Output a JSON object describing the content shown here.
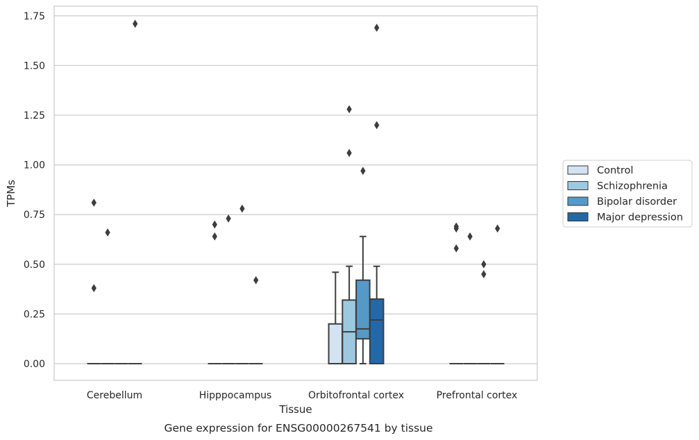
{
  "chart_data": {
    "type": "box",
    "xlabel": "Tissue",
    "ylabel": "TPMs",
    "caption": "Gene expression for ENSG00000267541 by tissue",
    "ylim": [
      -0.085,
      1.81
    ],
    "yticks": [
      "0.00",
      "0.25",
      "0.50",
      "0.75",
      "1.00",
      "1.25",
      "1.50",
      "1.75"
    ],
    "ytick_values": [
      0,
      0.25,
      0.5,
      0.75,
      1.0,
      1.25,
      1.5,
      1.75
    ],
    "grid": "horizontal",
    "legend_position": "right",
    "categories": [
      "Cerebellum",
      "Hipppocampus",
      "Orbitofrontal cortex",
      "Prefrontal cortex"
    ],
    "series": [
      {
        "name": "Control",
        "color": "#d4e3f2",
        "boxes": [
          {
            "min": 0,
            "q1": 0,
            "median": 0,
            "q3": 0,
            "max": 0,
            "outliers": [
              0.38,
              0.81
            ]
          },
          {
            "min": 0,
            "q1": 0,
            "median": 0,
            "q3": 0,
            "max": 0,
            "outliers": [
              0.64,
              0.7
            ]
          },
          {
            "min": 0,
            "q1": 0,
            "median": 0,
            "q3": 0.2,
            "max": 0.46,
            "outliers": []
          },
          {
            "min": 0,
            "q1": 0,
            "median": 0,
            "q3": 0,
            "max": 0,
            "outliers": [
              0.58,
              0.68,
              0.69
            ]
          }
        ]
      },
      {
        "name": "Schizophrenia",
        "color": "#9dc9e0",
        "boxes": [
          {
            "min": 0,
            "q1": 0,
            "median": 0,
            "q3": 0,
            "max": 0,
            "outliers": [
              0.66
            ]
          },
          {
            "min": 0,
            "q1": 0,
            "median": 0,
            "q3": 0,
            "max": 0,
            "outliers": [
              0.73
            ]
          },
          {
            "min": 0,
            "q1": 0,
            "median": 0.16,
            "q3": 0.32,
            "max": 0.49,
            "outliers": [
              1.06,
              1.28
            ]
          },
          {
            "min": 0,
            "q1": 0,
            "median": 0,
            "q3": 0,
            "max": 0,
            "outliers": [
              0.64
            ]
          }
        ]
      },
      {
        "name": "Bipolar disorder",
        "color": "#5599c8",
        "boxes": [
          {
            "min": 0,
            "q1": 0,
            "median": 0,
            "q3": 0,
            "max": 0,
            "outliers": []
          },
          {
            "min": 0,
            "q1": 0,
            "median": 0,
            "q3": 0,
            "max": 0,
            "outliers": [
              0.78
            ]
          },
          {
            "min": 0,
            "q1": 0.125,
            "median": 0.175,
            "q3": 0.42,
            "max": 0.64,
            "outliers": [
              0.97
            ]
          },
          {
            "min": 0,
            "q1": 0,
            "median": 0,
            "q3": 0,
            "max": 0,
            "outliers": [
              0.45,
              0.5
            ]
          }
        ]
      },
      {
        "name": "Major depression",
        "color": "#2369aa",
        "boxes": [
          {
            "min": 0,
            "q1": 0,
            "median": 0,
            "q3": 0,
            "max": 0,
            "outliers": [
              1.71
            ]
          },
          {
            "min": 0,
            "q1": 0,
            "median": 0,
            "q3": 0,
            "max": 0,
            "outliers": [
              0.42
            ]
          },
          {
            "min": 0,
            "q1": 0,
            "median": 0.22,
            "q3": 0.325,
            "max": 0.49,
            "outliers": [
              1.2,
              1.69
            ]
          },
          {
            "min": 0,
            "q1": 0,
            "median": 0,
            "q3": 0,
            "max": 0,
            "outliers": [
              0.68
            ]
          }
        ]
      }
    ]
  }
}
